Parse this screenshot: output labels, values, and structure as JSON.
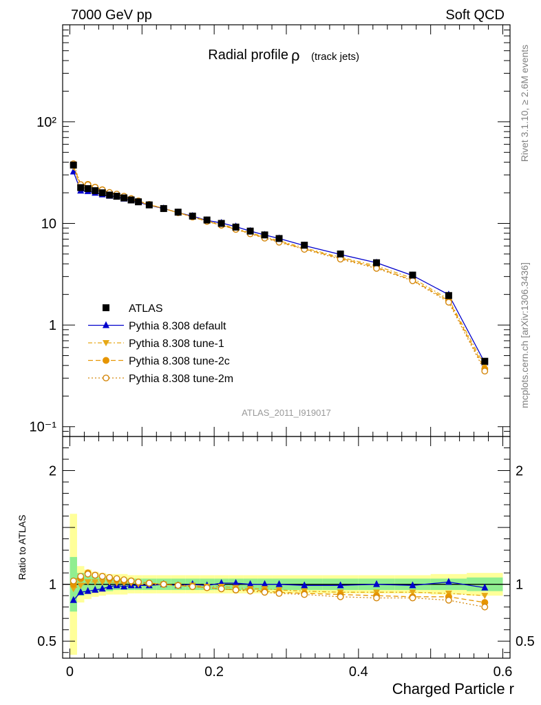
{
  "header": {
    "left": "7000 GeV pp",
    "right": "Soft QCD"
  },
  "title": "Radial profile",
  "title_symbol": "ρ",
  "title_suffix": "(track jets)",
  "analysis_label": "ATLAS_2011_I919017",
  "side_label_top": "Rivet 3.1.10, ≥ 2.6M events",
  "side_label_bottom": "mcplots.cern.ch [arXiv:1306.3436]",
  "ratio_ylabel": "Ratio to ATLAS",
  "xlabel": "Charged Particle r",
  "colors": {
    "atlas": "#000000",
    "default": "#0000cc",
    "tune1": "#e6a817",
    "tune2c": "#e69500",
    "tune2m": "#d4860a",
    "band_inner": "#90ee90",
    "band_outer": "#ffff99"
  },
  "chart_data": {
    "type": "line",
    "xlim": [
      -0.01,
      0.61
    ],
    "main": {
      "yscale": "log",
      "ylim": [
        0.08,
        900
      ],
      "yticks": [
        {
          "value": 0.1,
          "label": "10⁻¹"
        },
        {
          "value": 1,
          "label": "1"
        },
        {
          "value": 10,
          "label": "10"
        },
        {
          "value": 100,
          "label": "10²"
        }
      ]
    },
    "ratio": {
      "ylim": [
        0.35,
        2.3
      ],
      "yticks": [
        {
          "value": 0.5,
          "label": "0.5"
        },
        {
          "value": 1,
          "label": "1"
        },
        {
          "value": 2,
          "label": "2"
        }
      ]
    },
    "xticks": [
      {
        "value": 0,
        "label": "0"
      },
      {
        "value": 0.2,
        "label": "0.2"
      },
      {
        "value": 0.4,
        "label": "0.4"
      },
      {
        "value": 0.6,
        "label": "0.6"
      }
    ],
    "bins": [
      [
        0.0,
        0.01
      ],
      [
        0.01,
        0.02
      ],
      [
        0.02,
        0.03
      ],
      [
        0.03,
        0.04
      ],
      [
        0.04,
        0.05
      ],
      [
        0.05,
        0.06
      ],
      [
        0.06,
        0.07
      ],
      [
        0.07,
        0.08
      ],
      [
        0.08,
        0.09
      ],
      [
        0.09,
        0.1
      ],
      [
        0.1,
        0.12
      ],
      [
        0.12,
        0.14
      ],
      [
        0.14,
        0.16
      ],
      [
        0.16,
        0.18
      ],
      [
        0.18,
        0.2
      ],
      [
        0.2,
        0.22
      ],
      [
        0.22,
        0.24
      ],
      [
        0.24,
        0.26
      ],
      [
        0.26,
        0.28
      ],
      [
        0.28,
        0.3
      ],
      [
        0.3,
        0.35
      ],
      [
        0.35,
        0.4
      ],
      [
        0.4,
        0.45
      ],
      [
        0.45,
        0.5
      ],
      [
        0.5,
        0.55
      ],
      [
        0.55,
        0.6
      ]
    ],
    "x": [
      0.005,
      0.015,
      0.025,
      0.035,
      0.045,
      0.055,
      0.065,
      0.075,
      0.085,
      0.095,
      0.11,
      0.13,
      0.15,
      0.17,
      0.19,
      0.21,
      0.23,
      0.25,
      0.27,
      0.29,
      0.325,
      0.375,
      0.425,
      0.475,
      0.525,
      0.575
    ],
    "atlas": {
      "name": "ATLAS",
      "y": [
        37.5,
        22.5,
        22.0,
        21.0,
        20.0,
        19.0,
        18.5,
        17.8,
        17.0,
        16.3,
        15.2,
        14.0,
        12.9,
        11.8,
        10.8,
        10.0,
        9.2,
        8.4,
        7.7,
        7.1,
        6.1,
        5.0,
        4.1,
        3.1,
        1.95,
        0.44
      ],
      "ratio_band_inner": [
        0.24,
        0.1,
        0.08,
        0.07,
        0.06,
        0.06,
        0.05,
        0.05,
        0.05,
        0.05,
        0.05,
        0.05,
        0.05,
        0.05,
        0.05,
        0.05,
        0.05,
        0.05,
        0.05,
        0.05,
        0.05,
        0.05,
        0.05,
        0.05,
        0.05,
        0.06
      ],
      "ratio_band_outer": [
        0.62,
        0.16,
        0.13,
        0.11,
        0.1,
        0.09,
        0.09,
        0.09,
        0.08,
        0.08,
        0.08,
        0.08,
        0.08,
        0.08,
        0.08,
        0.08,
        0.08,
        0.08,
        0.08,
        0.08,
        0.08,
        0.08,
        0.08,
        0.08,
        0.09,
        0.1
      ]
    },
    "series": [
      {
        "name": "Pythia 8.308 default",
        "key": "default",
        "marker": "triangle-up",
        "dash": "",
        "ratio": [
          0.86,
          0.93,
          0.94,
          0.95,
          0.96,
          0.98,
          0.99,
          0.98,
          0.99,
          0.99,
          0.99,
          1.0,
          0.99,
          1.0,
          0.99,
          1.01,
          1.01,
          1.0,
          1.0,
          1.0,
          0.99,
          0.99,
          1.0,
          0.99,
          1.02,
          0.97
        ]
      },
      {
        "name": "Pythia 8.308 tune-1",
        "key": "tune1",
        "marker": "triangle-down",
        "dash": "6,3,2,3",
        "ratio": [
          0.96,
          0.99,
          1.02,
          1.02,
          1.02,
          1.02,
          1.01,
          1.01,
          1.01,
          1.0,
          1.0,
          1.0,
          0.99,
          0.99,
          0.98,
          0.98,
          0.97,
          0.96,
          0.96,
          0.95,
          0.94,
          0.93,
          0.93,
          0.93,
          0.92,
          0.9
        ]
      },
      {
        "name": "Pythia 8.308 tune-2c",
        "key": "tune2c",
        "marker": "circle",
        "dash": "7,4",
        "ratio": [
          1.0,
          1.05,
          1.1,
          1.08,
          1.07,
          1.05,
          1.04,
          1.03,
          1.03,
          1.02,
          1.01,
          1.0,
          0.99,
          0.98,
          0.97,
          0.96,
          0.95,
          0.95,
          0.94,
          0.93,
          0.92,
          0.91,
          0.9,
          0.89,
          0.89,
          0.84
        ]
      },
      {
        "name": "Pythia 8.308 tune-2m",
        "key": "tune2m",
        "marker": "circle-open",
        "dash": "2,3",
        "ratio": [
          1.03,
          1.07,
          1.09,
          1.08,
          1.07,
          1.06,
          1.05,
          1.04,
          1.03,
          1.02,
          1.01,
          1.0,
          0.99,
          0.98,
          0.97,
          0.96,
          0.95,
          0.94,
          0.93,
          0.92,
          0.91,
          0.89,
          0.88,
          0.88,
          0.86,
          0.8
        ]
      }
    ]
  }
}
